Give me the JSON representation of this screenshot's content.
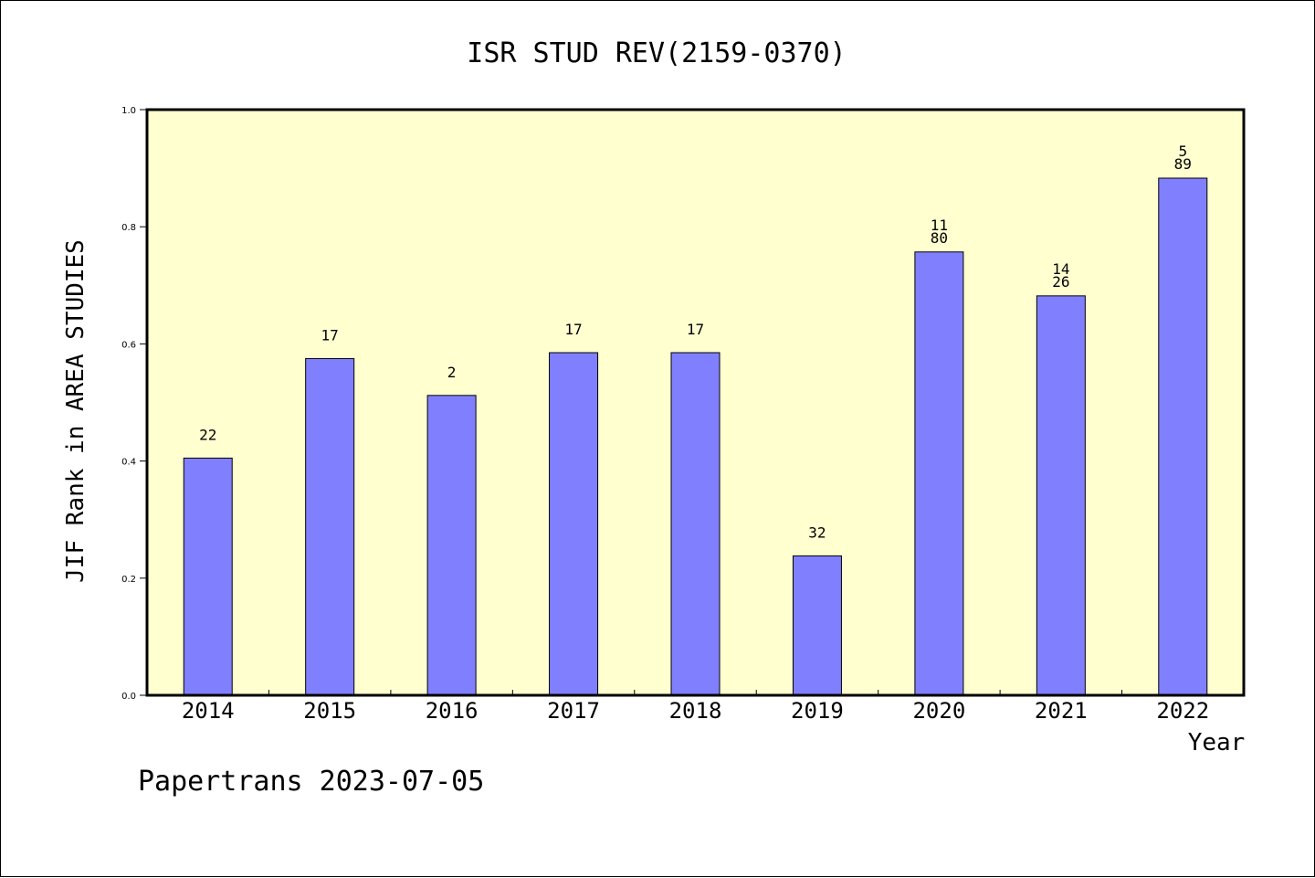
{
  "chart_data": {
    "type": "bar",
    "title": "ISR STUD REV(2159-0370)",
    "xlabel": "Year",
    "ylabel": "JIF Rank in AREA STUDIES",
    "ylim": [
      0,
      1.0
    ],
    "yticks": [
      "0.0",
      "0.2",
      "0.4",
      "0.6",
      "0.8",
      "1.0"
    ],
    "categories": [
      "2014",
      "2015",
      "2016",
      "2017",
      "2018",
      "2019",
      "2020",
      "2021",
      "2022"
    ],
    "values": [
      0.405,
      0.575,
      0.512,
      0.585,
      0.585,
      0.238,
      0.757,
      0.682,
      0.883
    ],
    "bar_labels": [
      [
        "22"
      ],
      [
        "17"
      ],
      [
        "2"
      ],
      [
        "17"
      ],
      [
        "17"
      ],
      [
        "32"
      ],
      [
        "11",
        "80"
      ],
      [
        "14",
        "26"
      ],
      [
        "5",
        "89"
      ]
    ],
    "grid": false,
    "colors": {
      "bar": "#8080ff",
      "plot_background": "#ffffd0",
      "axis": "#000000"
    }
  },
  "footer": {
    "text": "Papertrans 2023-07-05"
  }
}
